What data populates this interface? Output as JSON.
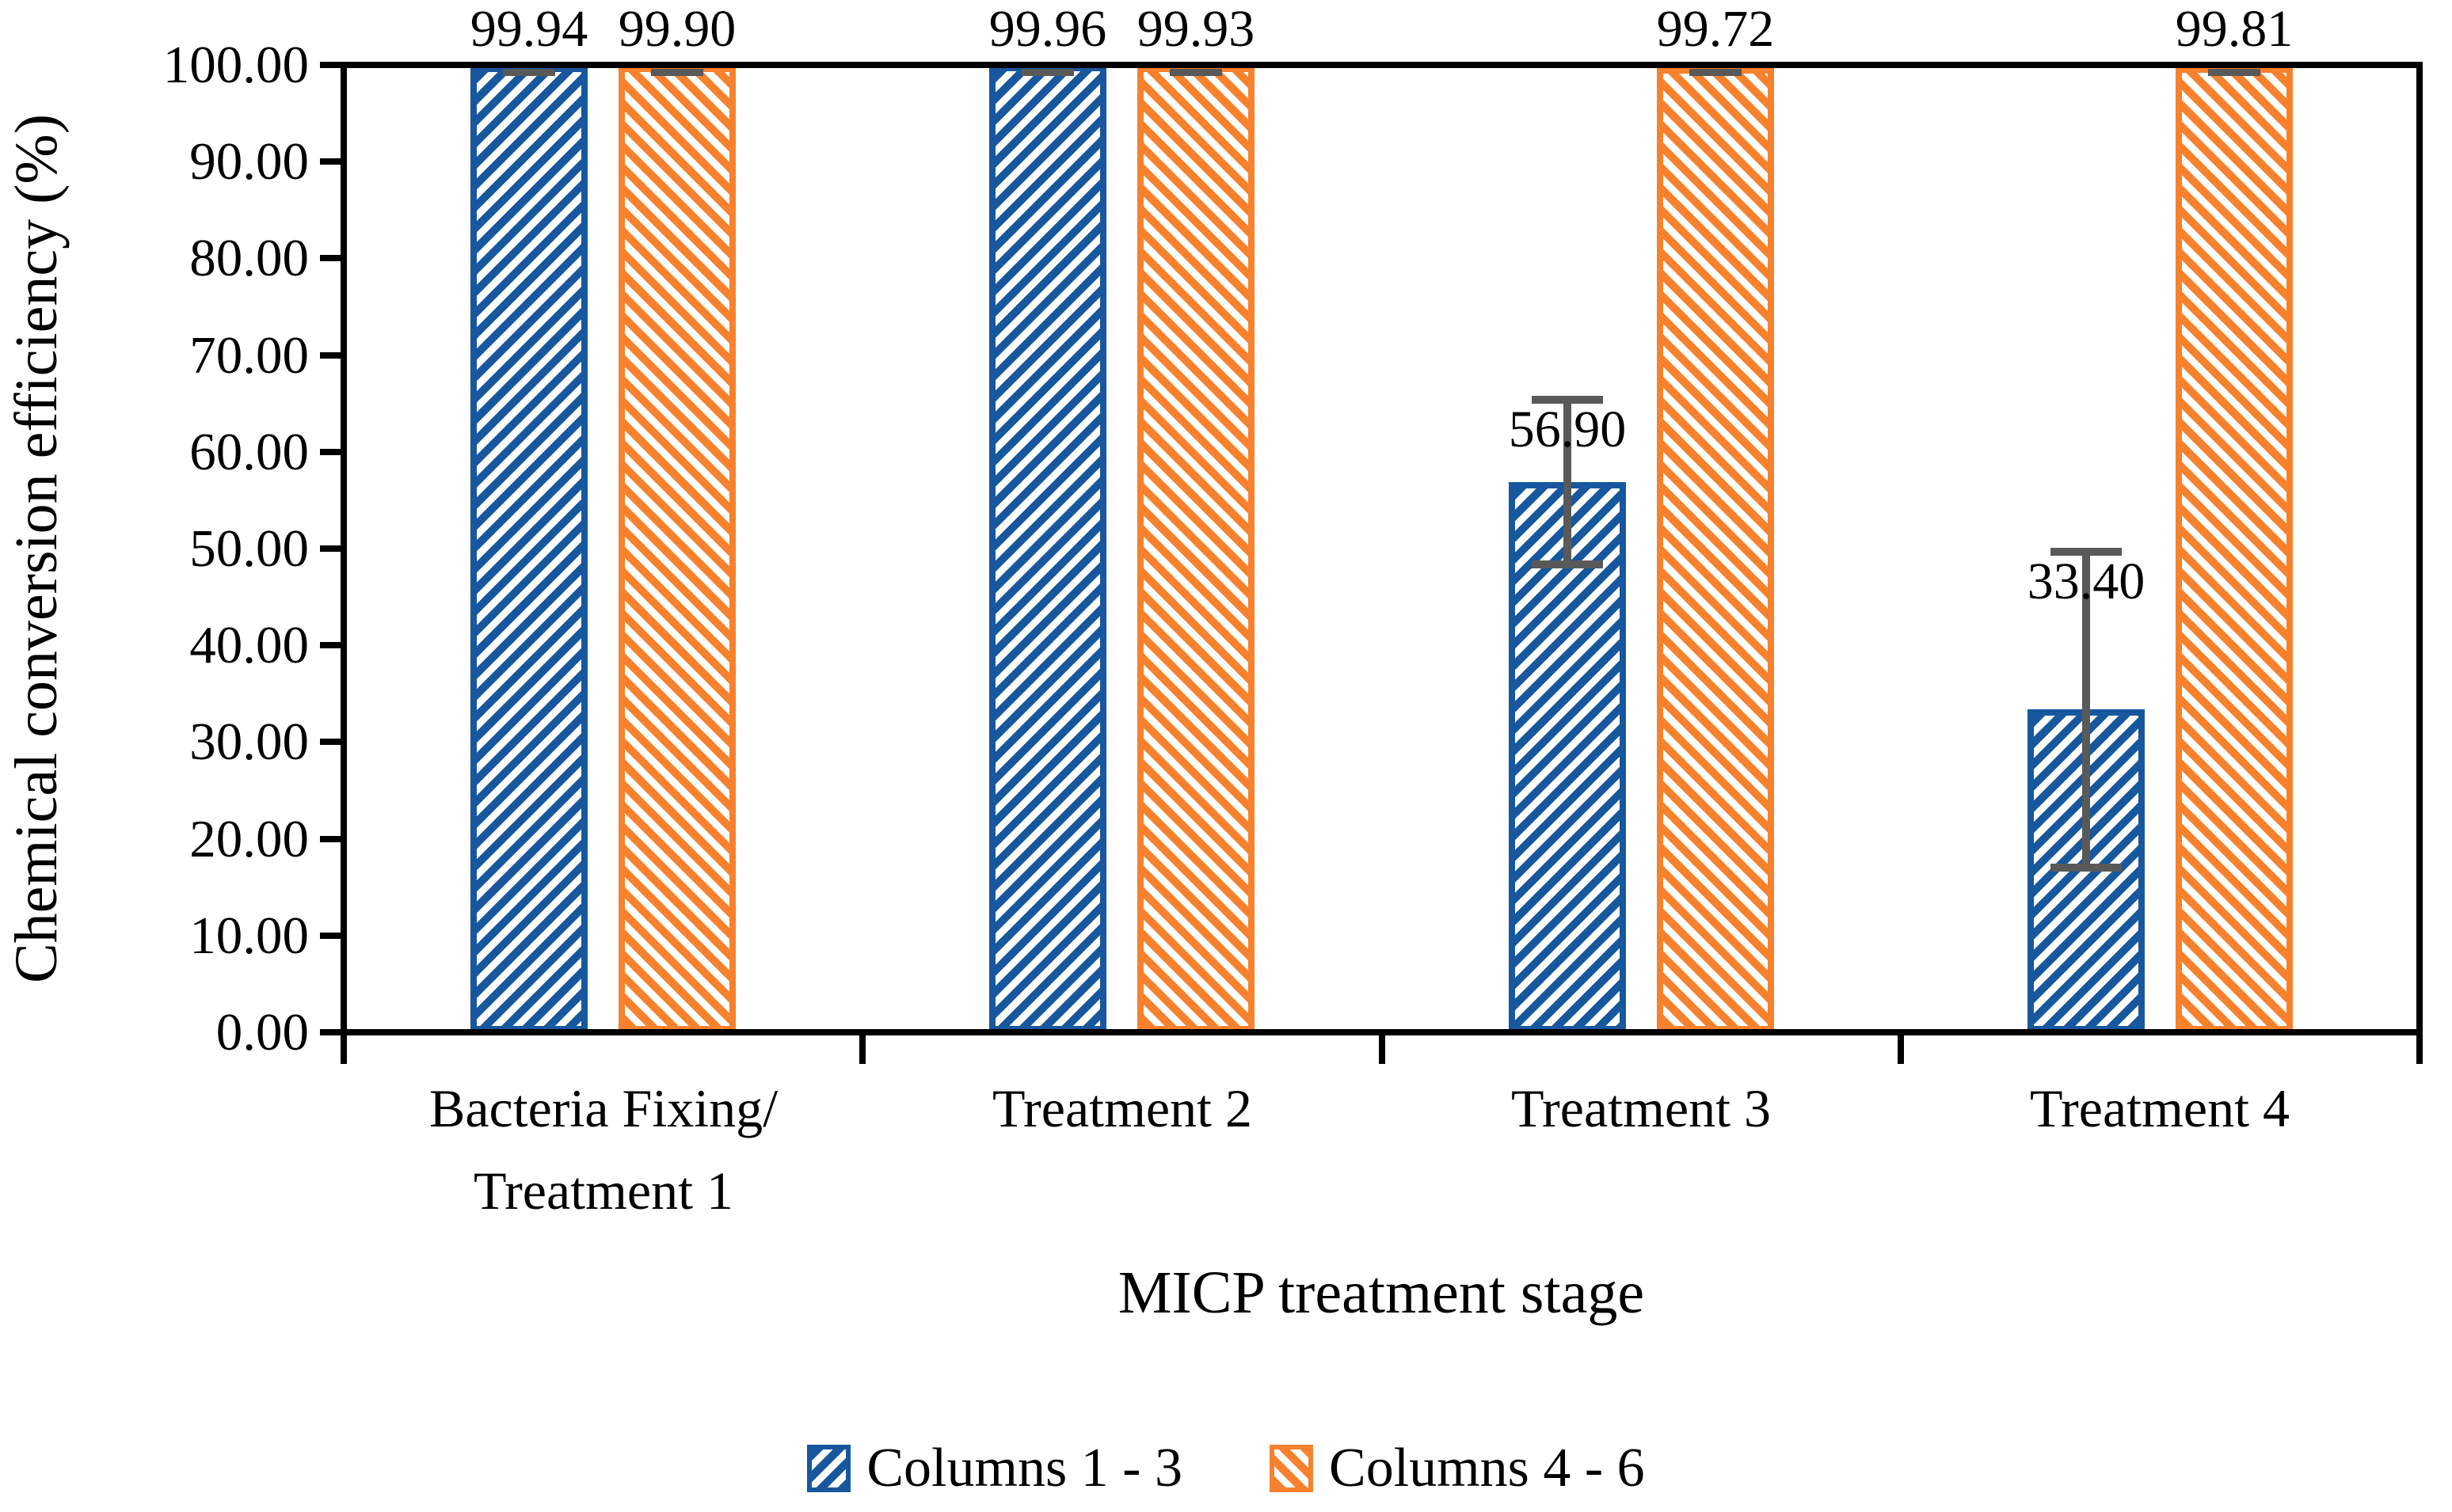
{
  "chart_data": {
    "type": "bar",
    "title": "",
    "xlabel": "MICP treatment stage",
    "ylabel": "Chemical conversion efficiency (%)",
    "ylim": [
      0,
      100
    ],
    "ytick_step": 10,
    "ytick_labels": [
      "0.00",
      "10.00",
      "20.00",
      "30.00",
      "40.00",
      "50.00",
      "60.00",
      "70.00",
      "80.00",
      "90.00",
      "100.00"
    ],
    "grid": false,
    "legend_position": "bottom",
    "plot_border": "full-box",
    "error_bar_color": "#595959",
    "categories": [
      {
        "lines": [
          "Bacteria Fixing/",
          "Treatment 1"
        ]
      },
      {
        "lines": [
          "Treatment 2"
        ]
      },
      {
        "lines": [
          "Treatment 3"
        ]
      },
      {
        "lines": [
          "Treatment 4"
        ]
      }
    ],
    "series": [
      {
        "name": "Columns 1 - 3",
        "color": "#17579E",
        "hatch_direction": "forward-diagonal",
        "values": [
          99.94,
          99.96,
          56.9,
          33.4
        ],
        "value_labels": [
          "99.94",
          "99.96",
          "56.90",
          "33.40"
        ],
        "error_bars": [
          {
            "cap_only": true
          },
          {
            "cap_only": true
          },
          {
            "center": 56.9,
            "upper": 65.4,
            "lower": 48.4
          },
          {
            "center": 33.4,
            "upper": 49.7,
            "lower": 17.0
          }
        ]
      },
      {
        "name": "Columns 4 - 6",
        "color": "#F7812D",
        "hatch_direction": "backward-diagonal",
        "values": [
          99.9,
          99.93,
          99.72,
          99.81
        ],
        "value_labels": [
          "99.90",
          "99.93",
          "99.72",
          "99.81"
        ],
        "error_bars": [
          {
            "cap_only": true
          },
          {
            "cap_only": true
          },
          {
            "cap_only": true
          },
          {
            "cap_only": true
          }
        ]
      }
    ]
  }
}
